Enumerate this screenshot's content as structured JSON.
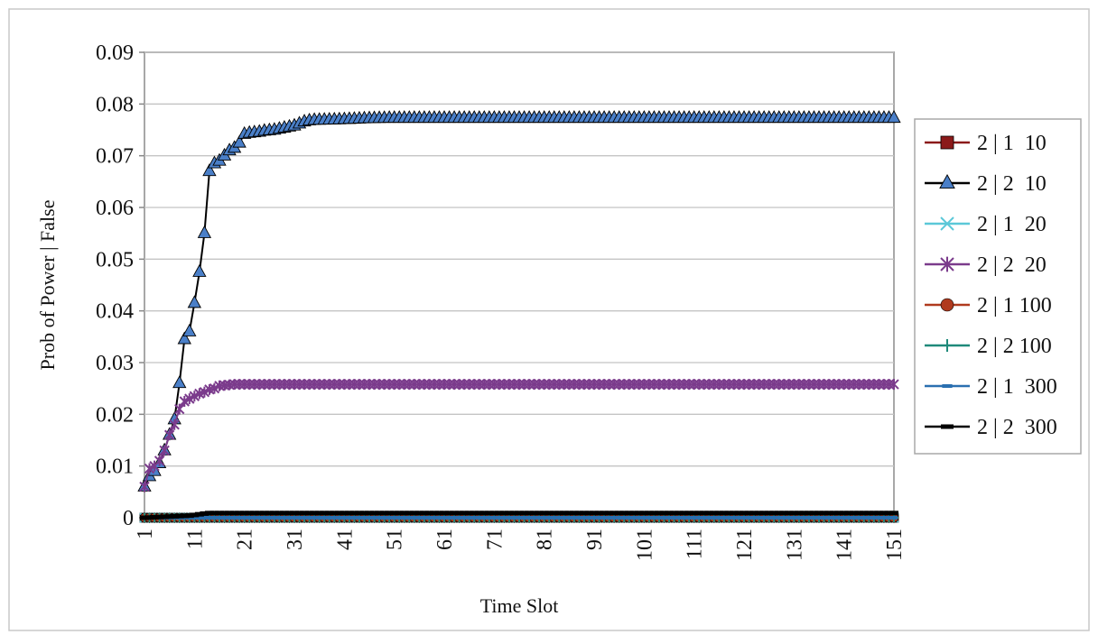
{
  "chart_data": {
    "type": "line",
    "title": "",
    "xlabel": "Time Slot",
    "ylabel": "Prob of Power | False",
    "xlim": [
      1,
      151
    ],
    "ylim": [
      0,
      0.09
    ],
    "x_ticks": [
      "1",
      "11",
      "21",
      "31",
      "41",
      "51",
      "61",
      "71",
      "81",
      "91",
      "101",
      "111",
      "121",
      "131",
      "141",
      "151"
    ],
    "y_ticks": [
      "0",
      "0.01",
      "0.02",
      "0.03",
      "0.04",
      "0.05",
      "0.06",
      "0.07",
      "0.08",
      "0.09"
    ],
    "grid": "horizontal",
    "legend_position": "right",
    "series": [
      {
        "name": "2 | 1  10",
        "color": "#8b1a1a",
        "marker": "square",
        "points": [
          [
            1,
            0
          ],
          [
            151,
            0
          ]
        ]
      },
      {
        "name": "2 | 2  10",
        "color": "#1f3f7a",
        "marker": "triangle",
        "points": [
          [
            1,
            0.006
          ],
          [
            2,
            0.008
          ],
          [
            3,
            0.009
          ],
          [
            4,
            0.0105
          ],
          [
            5,
            0.013
          ],
          [
            6,
            0.016
          ],
          [
            7,
            0.019
          ],
          [
            8,
            0.026
          ],
          [
            9,
            0.0345
          ],
          [
            10,
            0.036
          ],
          [
            11,
            0.0415
          ],
          [
            12,
            0.0475
          ],
          [
            13,
            0.055
          ],
          [
            14,
            0.067
          ],
          [
            15,
            0.0685
          ],
          [
            16,
            0.069
          ],
          [
            17,
            0.07
          ],
          [
            18,
            0.071
          ],
          [
            19,
            0.0715
          ],
          [
            20,
            0.0725
          ],
          [
            21,
            0.0742
          ],
          [
            22,
            0.0744
          ],
          [
            23,
            0.0745
          ],
          [
            24,
            0.0746
          ],
          [
            25,
            0.0748
          ],
          [
            26,
            0.0749
          ],
          [
            27,
            0.075
          ],
          [
            28,
            0.0752
          ],
          [
            29,
            0.0754
          ],
          [
            30,
            0.0756
          ],
          [
            31,
            0.0758
          ],
          [
            32,
            0.0762
          ],
          [
            33,
            0.0766
          ],
          [
            34,
            0.0768
          ],
          [
            35,
            0.0769
          ],
          [
            40,
            0.077
          ],
          [
            45,
            0.0772
          ],
          [
            50,
            0.0773
          ],
          [
            151,
            0.0773
          ]
        ]
      },
      {
        "name": "2 | 1  20",
        "color": "#5bc8d8",
        "marker": "x",
        "points": [
          [
            1,
            0
          ],
          [
            151,
            0
          ]
        ]
      },
      {
        "name": "2 | 2  20",
        "color": "#7b3b8c",
        "marker": "star",
        "points": [
          [
            1,
            0.006
          ],
          [
            2,
            0.0095
          ],
          [
            3,
            0.01
          ],
          [
            4,
            0.011
          ],
          [
            5,
            0.013
          ],
          [
            6,
            0.016
          ],
          [
            7,
            0.018
          ],
          [
            8,
            0.021
          ],
          [
            9,
            0.0225
          ],
          [
            10,
            0.023
          ],
          [
            11,
            0.0235
          ],
          [
            12,
            0.024
          ],
          [
            13,
            0.0243
          ],
          [
            14,
            0.0248
          ],
          [
            15,
            0.025
          ],
          [
            16,
            0.0255
          ],
          [
            17,
            0.0256
          ],
          [
            18,
            0.0257
          ],
          [
            19,
            0.0258
          ],
          [
            20,
            0.0258
          ],
          [
            151,
            0.0258
          ]
        ]
      },
      {
        "name": "2 | 1 100",
        "color": "#b03a1e",
        "marker": "circle",
        "points": [
          [
            1,
            0
          ],
          [
            151,
            0
          ]
        ]
      },
      {
        "name": "2 | 2 100",
        "color": "#1f8a7a",
        "marker": "plus",
        "points": [
          [
            1,
            0
          ],
          [
            151,
            0
          ]
        ]
      },
      {
        "name": "2 | 1  300",
        "color": "#2a6fb0",
        "marker": "dash",
        "points": [
          [
            1,
            0
          ],
          [
            151,
            0
          ]
        ]
      },
      {
        "name": "2 | 2  300",
        "color": "#000000",
        "marker": "bar",
        "points": [
          [
            1,
            0
          ],
          [
            10,
            0.0004
          ],
          [
            13,
            0.0008
          ],
          [
            14,
            0.0009
          ],
          [
            151,
            0.0009
          ]
        ]
      }
    ]
  }
}
